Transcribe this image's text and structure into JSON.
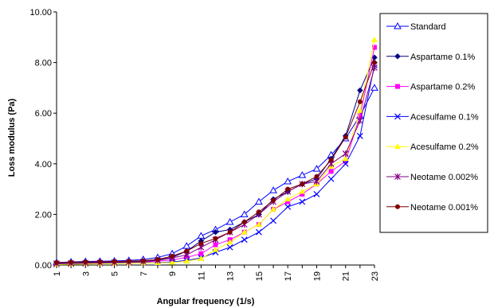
{
  "chart_data": {
    "type": "line",
    "xlabel": "Angular frequency   (1/s)",
    "ylabel": "Loss modulus (Pa)",
    "xlim": [
      1,
      23
    ],
    "ylim": [
      0,
      10
    ],
    "x_ticks": [
      "1",
      "3",
      "5",
      "7",
      "9",
      "11",
      "13",
      "15",
      "17",
      "19",
      "21",
      "23"
    ],
    "y_ticks": [
      "0.00",
      "2.00",
      "4.00",
      "6.00",
      "8.00",
      "10.00"
    ],
    "grid": false,
    "legend_position": "right",
    "x": [
      1,
      2,
      3,
      4,
      5,
      6,
      7,
      8,
      9,
      10,
      11,
      12,
      13,
      14,
      15,
      16,
      17,
      18,
      19,
      20,
      21,
      22,
      23
    ],
    "series": [
      {
        "name": "Standard",
        "color": "#0000ff",
        "marker": "triangle-open",
        "values": [
          0.1,
          0.12,
          0.14,
          0.15,
          0.16,
          0.18,
          0.22,
          0.3,
          0.45,
          0.75,
          1.15,
          1.4,
          1.7,
          2.0,
          2.5,
          2.95,
          3.3,
          3.55,
          3.8,
          4.35,
          5.0,
          5.9,
          7.0
        ]
      },
      {
        "name": "Aspartame 0.1%",
        "color": "#000080",
        "marker": "diamond",
        "values": [
          0.08,
          0.09,
          0.1,
          0.11,
          0.12,
          0.13,
          0.15,
          0.2,
          0.3,
          0.55,
          0.95,
          1.3,
          1.4,
          1.7,
          2.0,
          2.6,
          2.9,
          3.2,
          3.4,
          4.2,
          5.1,
          6.9,
          8.2
        ]
      },
      {
        "name": "Aspartame 0.2%",
        "color": "#ff00ff",
        "marker": "square",
        "values": [
          0.05,
          0.06,
          0.07,
          0.08,
          0.09,
          0.1,
          0.12,
          0.15,
          0.2,
          0.3,
          0.45,
          0.8,
          1.0,
          1.3,
          1.6,
          2.2,
          2.5,
          2.8,
          3.2,
          3.7,
          4.1,
          5.9,
          8.6
        ]
      },
      {
        "name": "Acesulfame 0.1%",
        "color": "#0000ff",
        "marker": "x",
        "values": [
          0.03,
          0.04,
          0.05,
          0.06,
          0.07,
          0.08,
          0.09,
          0.1,
          0.12,
          0.18,
          0.28,
          0.5,
          0.7,
          1.0,
          1.3,
          1.75,
          2.3,
          2.5,
          2.8,
          3.4,
          4.0,
          5.1,
          7.9
        ]
      },
      {
        "name": "Acesulfame 0.2%",
        "color": "#ffff00",
        "marker": "triangle",
        "values": [
          0.02,
          0.03,
          0.04,
          0.05,
          0.06,
          0.07,
          0.08,
          0.09,
          0.1,
          0.15,
          0.25,
          0.6,
          0.9,
          1.3,
          1.6,
          2.2,
          2.6,
          2.9,
          3.2,
          3.9,
          4.2,
          6.1,
          8.9
        ]
      },
      {
        "name": "Neotame 0.002%",
        "color": "#800080",
        "marker": "star",
        "values": [
          0.06,
          0.07,
          0.08,
          0.09,
          0.1,
          0.11,
          0.13,
          0.18,
          0.28,
          0.4,
          0.7,
          1.0,
          1.3,
          1.6,
          2.0,
          2.5,
          2.9,
          3.2,
          3.3,
          4.0,
          4.4,
          5.7,
          7.8
        ]
      },
      {
        "name": "Neotame 0.001%",
        "color": "#800000",
        "marker": "circle",
        "values": [
          0.1,
          0.11,
          0.12,
          0.13,
          0.14,
          0.15,
          0.17,
          0.22,
          0.35,
          0.55,
          0.85,
          1.05,
          1.3,
          1.7,
          2.1,
          2.55,
          3.0,
          3.2,
          3.5,
          4.15,
          5.05,
          6.45,
          8.0
        ]
      }
    ]
  }
}
